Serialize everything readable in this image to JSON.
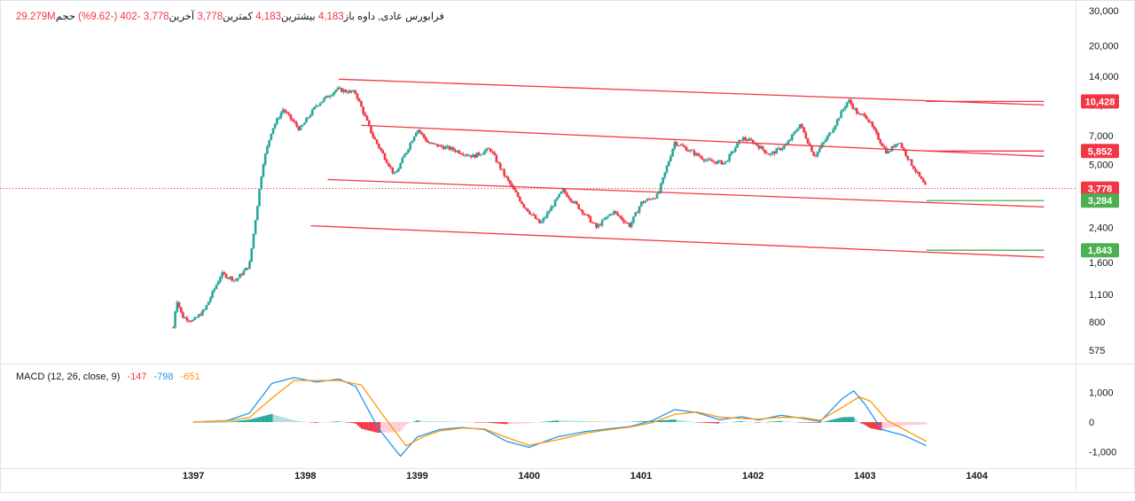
{
  "legend": {
    "title": "فرابورس عادی",
    "exchange": "داوه",
    "open_label": "باز",
    "open": "4,183",
    "high_label": "بیشترین",
    "high": "4,183",
    "low_label": "کمترین",
    "low": "3,778",
    "close_label": "آخرین",
    "close": "3,778",
    "change": "-402",
    "change_pct": "(-9.62%)",
    "volume_label": "حجم",
    "volume": "29.279M"
  },
  "macd": {
    "label": "MACD (12, 26, close, 9)",
    "hist": "-147",
    "macd": "-798",
    "signal": "-651"
  },
  "colors": {
    "up": "#26a69a",
    "down": "#f23645",
    "trendline": "#f23645",
    "macd_line": "#2196f3",
    "signal_line": "#ff9800",
    "label_green": "#4caf50",
    "label_red": "#f23645"
  },
  "chart_data": [
    {
      "type": "candlestick",
      "scale": "log",
      "ylim": [
        500,
        30000
      ],
      "x_ticks": [
        "1397",
        "1398",
        "1399",
        "1400",
        "1401",
        "1402",
        "1403",
        "1404"
      ],
      "y_ticks": [
        "30,000",
        "20,000",
        "14,000",
        "10,000",
        "7,000",
        "5,000",
        "3,400",
        "2,400",
        "1,600",
        "1,100",
        "800",
        "575"
      ],
      "y_tick_values": [
        30000,
        20000,
        14000,
        10000,
        7000,
        5000,
        3400,
        2400,
        1600,
        1100,
        800,
        575
      ],
      "price_path": [
        [
          1396.82,
          750
        ],
        [
          1396.85,
          1050
        ],
        [
          1396.9,
          850
        ],
        [
          1397.0,
          810
        ],
        [
          1397.1,
          920
        ],
        [
          1397.25,
          1400
        ],
        [
          1397.38,
          1300
        ],
        [
          1397.5,
          1550
        ],
        [
          1397.62,
          5000
        ],
        [
          1397.7,
          7500
        ],
        [
          1397.8,
          9500
        ],
        [
          1397.95,
          7500
        ],
        [
          1398.1,
          10000
        ],
        [
          1398.28,
          12000
        ],
        [
          1398.45,
          11500
        ],
        [
          1398.6,
          7000
        ],
        [
          1398.8,
          4400
        ],
        [
          1399.0,
          7600
        ],
        [
          1399.1,
          6400
        ],
        [
          1399.3,
          6000
        ],
        [
          1399.5,
          5500
        ],
        [
          1399.65,
          6000
        ],
        [
          1399.78,
          4400
        ],
        [
          1399.95,
          3100
        ],
        [
          1400.1,
          2500
        ],
        [
          1400.3,
          3700
        ],
        [
          1400.5,
          2800
        ],
        [
          1400.6,
          2400
        ],
        [
          1400.75,
          2900
        ],
        [
          1400.9,
          2450
        ],
        [
          1401.0,
          3200
        ],
        [
          1401.15,
          3500
        ],
        [
          1401.3,
          6500
        ],
        [
          1401.45,
          5800
        ],
        [
          1401.6,
          5200
        ],
        [
          1401.75,
          5100
        ],
        [
          1401.9,
          6800
        ],
        [
          1402.0,
          6500
        ],
        [
          1402.15,
          5600
        ],
        [
          1402.3,
          6300
        ],
        [
          1402.42,
          8000
        ],
        [
          1402.55,
          5500
        ],
        [
          1402.7,
          7400
        ],
        [
          1402.85,
          10600
        ],
        [
          1402.95,
          8800
        ],
        [
          1403.0,
          9000
        ],
        [
          1403.1,
          7100
        ],
        [
          1403.2,
          5700
        ],
        [
          1403.3,
          6600
        ],
        [
          1403.4,
          5200
        ],
        [
          1403.55,
          3778
        ]
      ],
      "trendlines": [
        {
          "x1": 1398.3,
          "y1": 13500,
          "x2": 1404.6,
          "y2": 10000
        },
        {
          "x1": 1398.5,
          "y1": 7900,
          "x2": 1404.6,
          "y2": 5500
        },
        {
          "x1": 1398.2,
          "y1": 4200,
          "x2": 1404.6,
          "y2": 3050
        },
        {
          "x1": 1398.05,
          "y1": 2450,
          "x2": 1404.6,
          "y2": 1700
        }
      ],
      "horizontal_stubs": [
        {
          "x1": 1403.55,
          "x2": 1404.6,
          "y": 10428,
          "color": "#f23645"
        },
        {
          "x1": 1403.55,
          "x2": 1404.6,
          "y": 5852,
          "color": "#f23645"
        },
        {
          "x1": 1403.55,
          "x2": 1404.6,
          "y": 3284,
          "color": "#4caf50"
        },
        {
          "x1": 1403.55,
          "x2": 1404.6,
          "y": 1843,
          "color": "#4caf50"
        }
      ],
      "price_labels": [
        {
          "text": "10,428",
          "value": 10428,
          "color": "#f23645"
        },
        {
          "text": "5,852",
          "value": 5852,
          "color": "#f23645"
        },
        {
          "text": "3,778",
          "value": 3778,
          "color": "#f23645"
        },
        {
          "text": "3,284",
          "value": 3284,
          "color": "#4caf50"
        },
        {
          "text": "1,843",
          "value": 1843,
          "color": "#4caf50"
        }
      ],
      "current_price": 3778
    },
    {
      "type": "macd",
      "ylim": [
        -1250,
        1600
      ],
      "y_ticks": [
        "1,000",
        "0",
        "-1,000"
      ],
      "y_tick_values": [
        1000,
        0,
        -1000
      ],
      "macd_path": [
        [
          1397.0,
          0
        ],
        [
          1397.3,
          50
        ],
        [
          1397.5,
          300
        ],
        [
          1397.7,
          1300
        ],
        [
          1397.9,
          1500
        ],
        [
          1398.1,
          1350
        ],
        [
          1398.3,
          1450
        ],
        [
          1398.45,
          1200
        ],
        [
          1398.65,
          -200
        ],
        [
          1398.85,
          -1150
        ],
        [
          1399.0,
          -500
        ],
        [
          1399.2,
          -250
        ],
        [
          1399.4,
          -180
        ],
        [
          1399.6,
          -250
        ],
        [
          1399.8,
          -650
        ],
        [
          1400.0,
          -850
        ],
        [
          1400.25,
          -500
        ],
        [
          1400.5,
          -320
        ],
        [
          1400.7,
          -230
        ],
        [
          1400.9,
          -150
        ],
        [
          1401.1,
          50
        ],
        [
          1401.3,
          420
        ],
        [
          1401.5,
          320
        ],
        [
          1401.7,
          80
        ],
        [
          1401.9,
          180
        ],
        [
          1402.05,
          70
        ],
        [
          1402.25,
          230
        ],
        [
          1402.45,
          120
        ],
        [
          1402.6,
          20
        ],
        [
          1402.8,
          800
        ],
        [
          1402.9,
          1050
        ],
        [
          1403.0,
          600
        ],
        [
          1403.15,
          -250
        ],
        [
          1403.35,
          -450
        ],
        [
          1403.55,
          -798
        ]
      ],
      "signal_path": [
        [
          1397.0,
          0
        ],
        [
          1397.3,
          40
        ],
        [
          1397.5,
          150
        ],
        [
          1397.7,
          800
        ],
        [
          1397.9,
          1400
        ],
        [
          1398.1,
          1400
        ],
        [
          1398.3,
          1400
        ],
        [
          1398.5,
          1250
        ],
        [
          1398.7,
          200
        ],
        [
          1398.9,
          -800
        ],
        [
          1399.05,
          -500
        ],
        [
          1399.2,
          -300
        ],
        [
          1399.4,
          -200
        ],
        [
          1399.6,
          -230
        ],
        [
          1399.8,
          -520
        ],
        [
          1400.0,
          -780
        ],
        [
          1400.25,
          -600
        ],
        [
          1400.5,
          -380
        ],
        [
          1400.7,
          -260
        ],
        [
          1400.9,
          -170
        ],
        [
          1401.1,
          -20
        ],
        [
          1401.3,
          260
        ],
        [
          1401.5,
          340
        ],
        [
          1401.7,
          170
        ],
        [
          1401.9,
          120
        ],
        [
          1402.05,
          100
        ],
        [
          1402.25,
          160
        ],
        [
          1402.45,
          150
        ],
        [
          1402.6,
          60
        ],
        [
          1402.8,
          500
        ],
        [
          1402.95,
          850
        ],
        [
          1403.05,
          700
        ],
        [
          1403.2,
          50
        ],
        [
          1403.35,
          -250
        ],
        [
          1403.55,
          -651
        ]
      ]
    }
  ]
}
